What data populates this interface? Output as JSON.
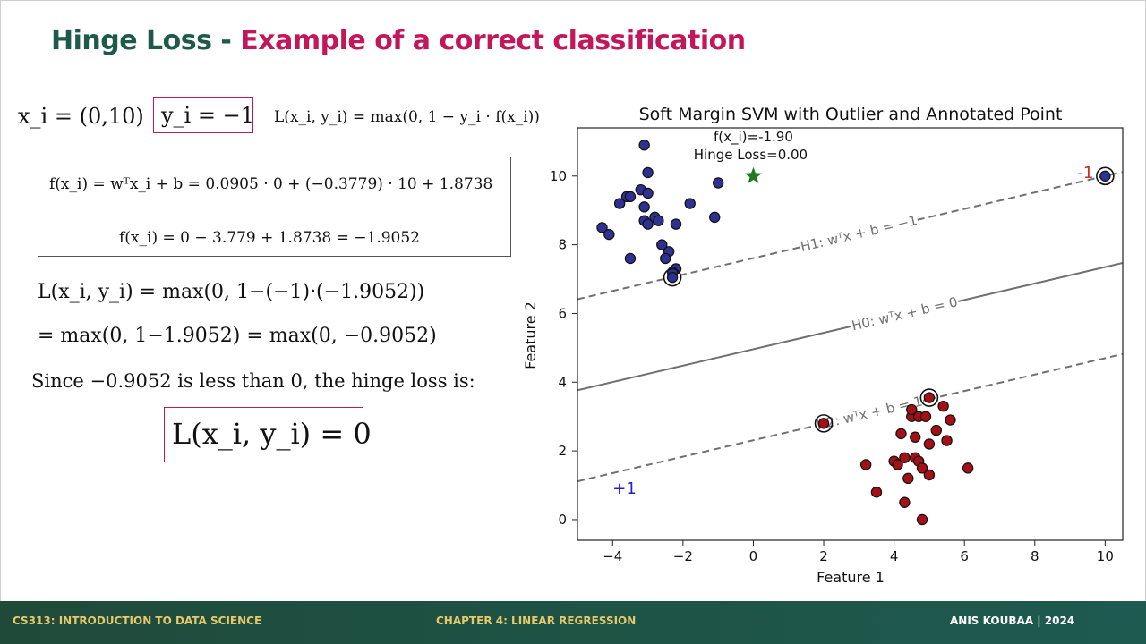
{
  "title": {
    "part1": "Hinge Loss - ",
    "part2": "Example of a correct classification"
  },
  "colors": {
    "title_green": "#1d5a4a",
    "title_pink": "#c2185b",
    "footer_gold": "#e7c96a",
    "class_neg": "#2e3192",
    "class_pos": "#a50f15",
    "star": "#1f7a1f"
  },
  "math": {
    "xi_def": "x_i = (0,10)",
    "yi_def": "y_i = −1",
    "loss_def": "L(x_i, y_i) = max(0, 1 − y_i · f(x_i))",
    "f_line1": "f(x_i) = wᵀx_i + b = 0.0905 · 0 + (−0.3779) · 10 + 1.8738",
    "f_line2": "f(x_i) = 0 − 3.779 + 1.8738 = −1.9052",
    "L_line1": "L(x_i, y_i) = max(0, 1−(−1)·(−1.9052))",
    "L_line2": "= max(0, 1−1.9052) = max(0, −0.9052)",
    "since": "Since −0.9052 is less than 0, the hinge loss is:",
    "result": "L(x_i, y_i) = 0"
  },
  "chart_data": {
    "type": "scatter",
    "title": "Soft Margin SVM with Outlier and Annotated Point",
    "xlabel": "Feature 1",
    "ylabel": "Feature 2",
    "xlim": [
      -5,
      10.5
    ],
    "ylim": [
      -0.6,
      11.4
    ],
    "xticks": [
      -4,
      -2,
      0,
      2,
      4,
      6,
      8,
      10
    ],
    "yticks": [
      0,
      2,
      4,
      6,
      8,
      10
    ],
    "xtick_labels": [
      "−4",
      "−2",
      "0",
      "2",
      "4",
      "6",
      "8",
      "10"
    ],
    "ytick_labels": [
      "0",
      "2",
      "4",
      "6",
      "8",
      "10"
    ],
    "lines": {
      "H0": {
        "slope": 0.239,
        "intercept": 4.96,
        "label": "H0: wᵀx + b = 0",
        "style": "solid"
      },
      "H1": {
        "slope": 0.239,
        "intercept": 7.61,
        "label": "H1: wᵀx + b = −1",
        "style": "dashed"
      },
      "H2": {
        "slope": 0.239,
        "intercept": 2.31,
        "label": "H2: wᵀx + b = 1",
        "style": "dashed"
      }
    },
    "series": [
      {
        "name": "-1",
        "color": "#2e3192",
        "points": [
          [
            -3.1,
            10.9
          ],
          [
            -3.2,
            9.6
          ],
          [
            -3.0,
            10.1
          ],
          [
            -3.6,
            9.4
          ],
          [
            -3.1,
            9.1
          ],
          [
            -3.5,
            9.4
          ],
          [
            -3.8,
            9.2
          ],
          [
            -3.0,
            9.5
          ],
          [
            -2.8,
            8.8
          ],
          [
            -3.1,
            8.7
          ],
          [
            -2.7,
            8.7
          ],
          [
            -2.2,
            8.6
          ],
          [
            -3.0,
            8.6
          ],
          [
            -4.3,
            8.5
          ],
          [
            -4.1,
            8.3
          ],
          [
            -2.6,
            8.0
          ],
          [
            -2.4,
            7.8
          ],
          [
            -1.8,
            9.2
          ],
          [
            -1.0,
            9.8
          ],
          [
            -1.1,
            8.8
          ],
          [
            -3.5,
            7.6
          ],
          [
            -2.5,
            7.6
          ],
          [
            -2.2,
            7.3
          ],
          [
            -2.3,
            7.2
          ],
          [
            -2.3,
            7.05
          ]
        ]
      },
      {
        "name": "+1",
        "color": "#a50f15",
        "points": [
          [
            4.5,
            3.0
          ],
          [
            4.7,
            3.0
          ],
          [
            4.9,
            3.0
          ],
          [
            5.4,
            3.3
          ],
          [
            5.6,
            2.9
          ],
          [
            4.2,
            2.5
          ],
          [
            4.6,
            2.4
          ],
          [
            5.2,
            2.6
          ],
          [
            4.6,
            1.8
          ],
          [
            5.0,
            2.2
          ],
          [
            5.5,
            2.3
          ],
          [
            4.0,
            1.7
          ],
          [
            4.3,
            1.8
          ],
          [
            4.1,
            1.6
          ],
          [
            4.7,
            1.7
          ],
          [
            4.8,
            1.5
          ],
          [
            5.0,
            1.3
          ],
          [
            3.2,
            1.6
          ],
          [
            4.4,
            1.2
          ],
          [
            6.1,
            1.5
          ],
          [
            3.5,
            0.8
          ],
          [
            4.3,
            0.5
          ],
          [
            4.8,
            0.0
          ],
          [
            2.0,
            2.8
          ],
          [
            5.0,
            3.55
          ],
          [
            4.5,
            3.2
          ]
        ]
      }
    ],
    "support_vectors": [
      [
        -2.3,
        7.05
      ],
      [
        2.0,
        2.8
      ],
      [
        5.0,
        3.55
      ],
      [
        10.0,
        10.0
      ]
    ],
    "outlier": {
      "x": 10,
      "y": 10,
      "label": "-1"
    },
    "annotated_point": {
      "x": 0,
      "y": 10,
      "marker": "star",
      "text_line1": "f(x_i)=-1.90",
      "text_line2": "Hinge Loss=0.00"
    },
    "class_labels": {
      "positive": "+1",
      "negative": "-1"
    },
    "grid": false,
    "legend": "none"
  },
  "footer": {
    "left": "CS313: INTRODUCTION TO DATA SCIENCE",
    "center": "CHAPTER 4: LINEAR REGRESSION",
    "right": "ANIS KOUBAA | 2024"
  }
}
